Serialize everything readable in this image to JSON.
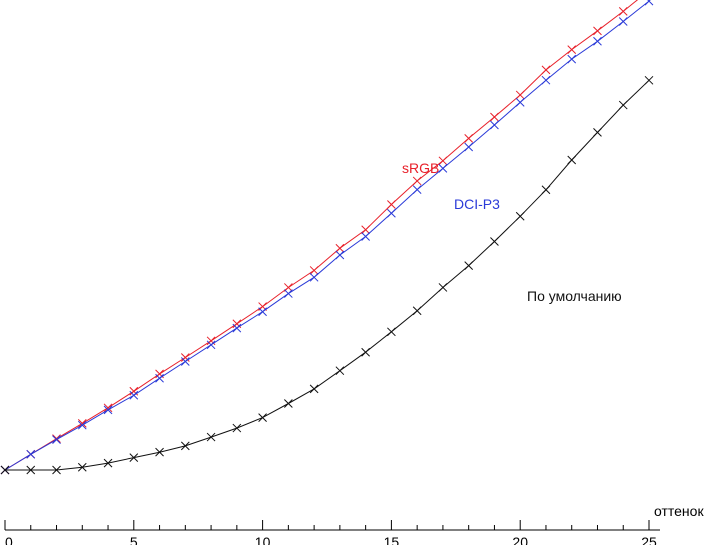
{
  "chart_data": {
    "type": "line",
    "xlabel": "оттенок",
    "ylabel": "",
    "xlim": [
      0,
      25
    ],
    "ylim": [
      0,
      29
    ],
    "grid": false,
    "x_ticks": [
      "0",
      "5",
      "10",
      "15",
      "20",
      "25"
    ],
    "x": [
      0,
      1,
      2,
      3,
      4,
      5,
      6,
      7,
      8,
      9,
      10,
      11,
      12,
      13,
      14,
      15,
      16,
      17,
      18,
      19,
      20,
      21,
      22,
      23,
      24,
      25
    ],
    "series": [
      {
        "name": "sRGB",
        "color": "#e8202a",
        "marker": "x",
        "values": [
          0.0,
          0.98,
          1.95,
          2.9,
          3.87,
          4.9,
          5.98,
          7.0,
          8.04,
          9.1,
          10.17,
          11.36,
          12.42,
          13.8,
          14.95,
          16.52,
          17.99,
          19.24,
          20.64,
          21.97,
          23.34,
          24.9,
          26.16,
          27.33,
          28.54,
          29.84
        ]
      },
      {
        "name": "DCI-P3",
        "color": "#2a3ad8",
        "marker": "x",
        "values": [
          0.0,
          0.98,
          1.89,
          2.79,
          3.74,
          4.65,
          5.71,
          6.75,
          7.79,
          8.83,
          9.85,
          10.98,
          11.99,
          13.38,
          14.53,
          15.98,
          17.45,
          18.77,
          20.1,
          21.47,
          22.88,
          24.26,
          25.57,
          26.68,
          27.91,
          29.18
        ]
      },
      {
        "name": "По умолчанию",
        "color": "#111111",
        "marker": "x",
        "values": [
          0.0,
          0.0,
          0.0,
          0.17,
          0.43,
          0.77,
          1.11,
          1.5,
          2.05,
          2.61,
          3.26,
          4.14,
          5.05,
          6.18,
          7.33,
          8.6,
          9.91,
          11.36,
          12.72,
          14.22,
          15.79,
          17.44,
          19.29,
          21.01,
          22.71,
          24.25
        ]
      }
    ]
  }
}
